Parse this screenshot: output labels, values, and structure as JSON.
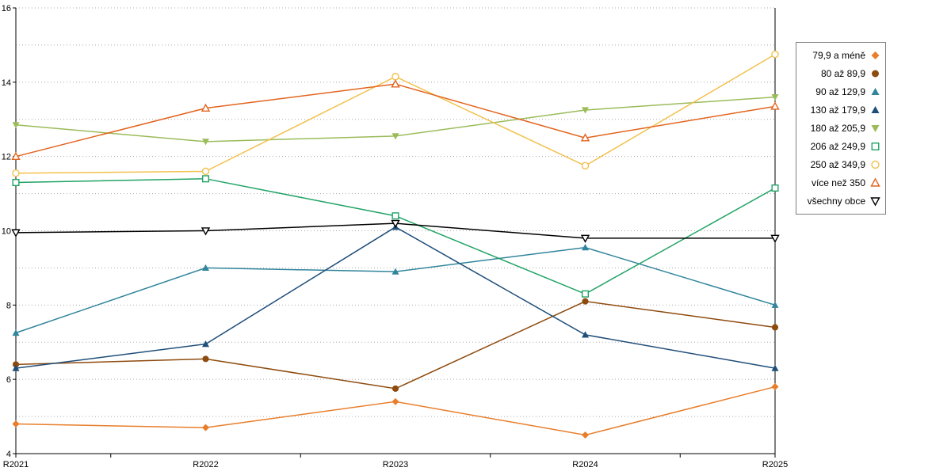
{
  "chart_data": {
    "type": "line",
    "title": "",
    "xlabel": "",
    "ylabel": "",
    "categories": [
      "R2021",
      "R2022",
      "R2023",
      "R2024",
      "R2025"
    ],
    "ylim": [
      4,
      16
    ],
    "yticks_labeled": [
      4,
      6,
      8,
      10,
      12,
      14,
      16
    ],
    "grid": "dotted-horizontal-every-1",
    "legend_position": "right",
    "axis_color": "#000000",
    "grid_color": "#aaaaaa",
    "series": [
      {
        "name": "79,9 a méně",
        "color": "#E87E2B",
        "marker": "diamond",
        "fill": "solid",
        "values": [
          4.8,
          4.7,
          5.4,
          4.5,
          5.8
        ]
      },
      {
        "name": "80 až 89,9",
        "color": "#8E4B0E",
        "marker": "circle",
        "fill": "solid",
        "values": [
          6.4,
          6.55,
          5.75,
          8.1,
          7.4
        ]
      },
      {
        "name": "90 až 129,9",
        "color": "#31859C",
        "marker": "triangle-up",
        "fill": "solid",
        "values": [
          7.25,
          9.0,
          8.9,
          9.55,
          8.0
        ]
      },
      {
        "name": "130 až 179,9",
        "color": "#1F4E79",
        "marker": "triangle-up",
        "fill": "solid",
        "values": [
          6.3,
          6.95,
          10.1,
          7.2,
          6.3
        ]
      },
      {
        "name": "180 až 205,9",
        "color": "#9BBB59",
        "marker": "triangle-down",
        "fill": "solid",
        "values": [
          12.85,
          12.4,
          12.55,
          13.25,
          13.6
        ]
      },
      {
        "name": "206 až 249,9",
        "color": "#21A366",
        "marker": "square",
        "fill": "open",
        "values": [
          11.3,
          11.4,
          10.4,
          8.3,
          11.15
        ]
      },
      {
        "name": "250 až 349,9",
        "color": "#F2C14E",
        "marker": "circle",
        "fill": "open",
        "values": [
          11.55,
          11.6,
          14.15,
          11.75,
          14.75
        ]
      },
      {
        "name": "více než 350",
        "color": "#E2641E",
        "marker": "triangle-up",
        "fill": "open",
        "values": [
          12.0,
          13.3,
          13.95,
          12.5,
          13.35
        ]
      },
      {
        "name": "všechny obce",
        "color": "#000000",
        "marker": "triangle-down",
        "fill": "open",
        "values": [
          9.95,
          10.0,
          10.2,
          9.8,
          9.8
        ]
      }
    ]
  }
}
